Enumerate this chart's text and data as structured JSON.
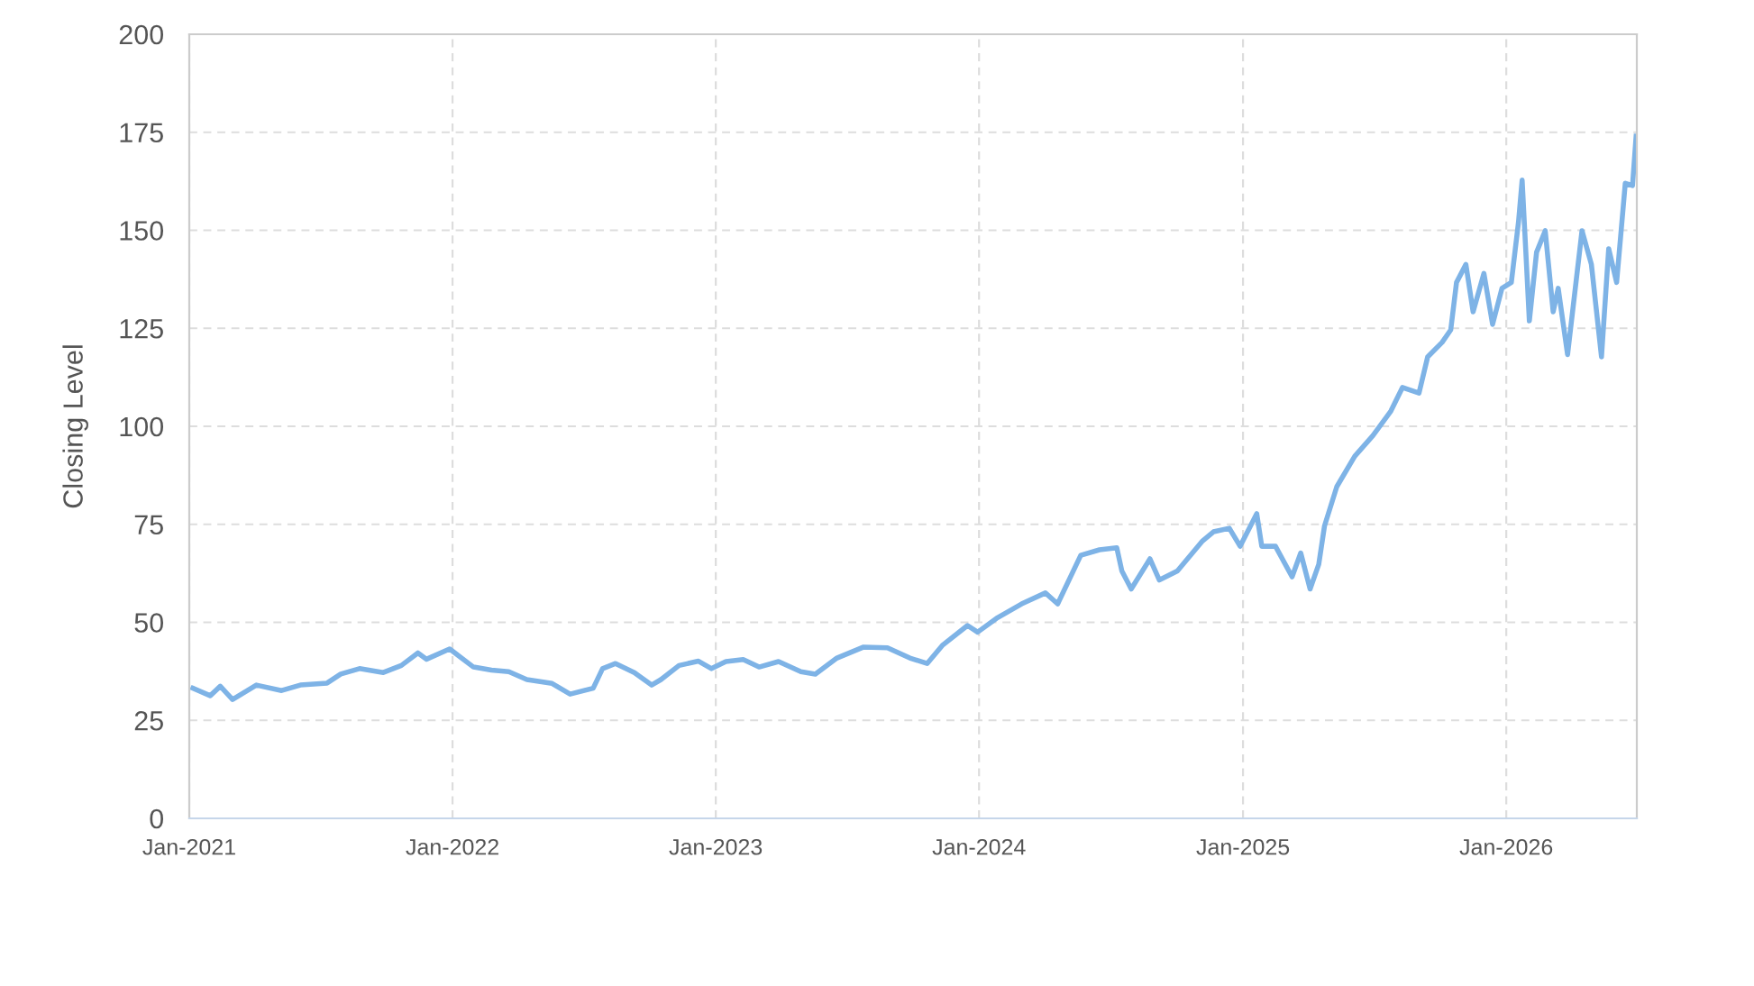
{
  "chart_data": {
    "type": "line",
    "ylabel": "Closing Level",
    "x": [
      "2021-01-06",
      "2021-01-30",
      "2021-02-13",
      "2021-03-02",
      "2021-04-04",
      "2021-05-09",
      "2021-06-04",
      "2021-07-11",
      "2021-07-30",
      "2021-08-25",
      "2021-09-27",
      "2021-10-22",
      "2021-11-14",
      "2021-11-26",
      "2021-12-28",
      "2022-01-30",
      "2022-02-24",
      "2022-03-20",
      "2022-04-14",
      "2022-05-19",
      "2022-06-13",
      "2022-07-15",
      "2022-07-28",
      "2022-08-15",
      "2022-09-10",
      "2022-10-04",
      "2022-10-17",
      "2022-11-11",
      "2022-12-08",
      "2022-12-26",
      "2023-01-15",
      "2023-02-08",
      "2023-03-02",
      "2023-03-29",
      "2023-04-29",
      "2023-05-19",
      "2023-06-18",
      "2023-07-25",
      "2023-08-27",
      "2023-09-27",
      "2023-10-21",
      "2023-11-11",
      "2023-12-16",
      "2023-12-30",
      "2024-01-25",
      "2024-02-29",
      "2024-04-02",
      "2024-04-19",
      "2024-05-21",
      "2024-06-16",
      "2024-07-10",
      "2024-07-17",
      "2024-07-30",
      "2024-08-25",
      "2024-09-07",
      "2024-10-02",
      "2024-11-06",
      "2024-11-21",
      "2024-12-13",
      "2024-12-28",
      "2025-01-20",
      "2025-01-27",
      "2025-02-15",
      "2025-03-10",
      "2025-03-22",
      "2025-04-04",
      "2025-04-16",
      "2025-04-24",
      "2025-05-11",
      "2025-06-05",
      "2025-06-30",
      "2025-07-25",
      "2025-08-10",
      "2025-09-02",
      "2025-09-14",
      "2025-10-04",
      "2025-10-16",
      "2025-10-24",
      "2025-11-06",
      "2025-11-16",
      "2025-12-01",
      "2025-12-13",
      "2025-12-26",
      "2026-01-08",
      "2026-01-18",
      "2026-01-23",
      "2026-02-02",
      "2026-02-12",
      "2026-02-24",
      "2026-03-07",
      "2026-03-14",
      "2026-03-27",
      "2026-04-16",
      "2026-04-29",
      "2026-05-13",
      "2026-05-23",
      "2026-06-03",
      "2026-06-15",
      "2026-06-25",
      "2026-06-30"
    ],
    "series": [
      {
        "color": "#7eb3e6",
        "values": [
          33.2,
          31.3,
          33.7,
          30.3,
          34,
          32.6,
          34,
          34.5,
          36.8,
          38.2,
          37.2,
          39,
          42.2,
          40.6,
          43.2,
          38.6,
          37.8,
          37.4,
          35.4,
          34.4,
          31.7,
          33.2,
          38.2,
          39.5,
          37.2,
          34,
          35.4,
          39,
          40.1,
          38.2,
          40,
          40.5,
          38.6,
          40,
          37.4,
          36.8,
          40.9,
          43.7,
          43.5,
          40.9,
          39.5,
          44.1,
          49.2,
          47.5,
          51,
          54.7,
          57.5,
          54.7,
          67.1,
          68.5,
          69,
          63.1,
          58.5,
          66.2,
          60.8,
          63.1,
          70.8,
          73.1,
          74,
          69.4,
          77.7,
          69.4,
          69.4,
          61.6,
          67.7,
          58.5,
          64.8,
          74.6,
          84.6,
          92.4,
          97.6,
          103.9,
          109.9,
          108.5,
          117.7,
          121.4,
          124.6,
          136.7,
          141.3,
          129.2,
          139,
          126,
          135.2,
          136.7,
          152.2,
          162.8,
          126.9,
          144.4,
          149.9,
          129.2,
          135.2,
          118.3,
          149.9,
          141.3,
          117.7,
          145.3,
          136.7,
          162,
          161.4,
          174
        ]
      }
    ],
    "xlim": [
      "2021-01-01",
      "2026-07-01"
    ],
    "xticks": [
      {
        "value": "2021-01-01",
        "label": "Jan-2021"
      },
      {
        "value": "2022-01-01",
        "label": "Jan-2022"
      },
      {
        "value": "2023-01-01",
        "label": "Jan-2023"
      },
      {
        "value": "2024-01-01",
        "label": "Jan-2024"
      },
      {
        "value": "2025-01-01",
        "label": "Jan-2025"
      },
      {
        "value": "2026-01-01",
        "label": "Jan-2026"
      }
    ],
    "ylim": [
      0,
      200
    ],
    "yticks": [
      0,
      25,
      50,
      75,
      100,
      125,
      150,
      175,
      200
    ],
    "grid": true,
    "line_style": "solid",
    "marker": "none"
  }
}
